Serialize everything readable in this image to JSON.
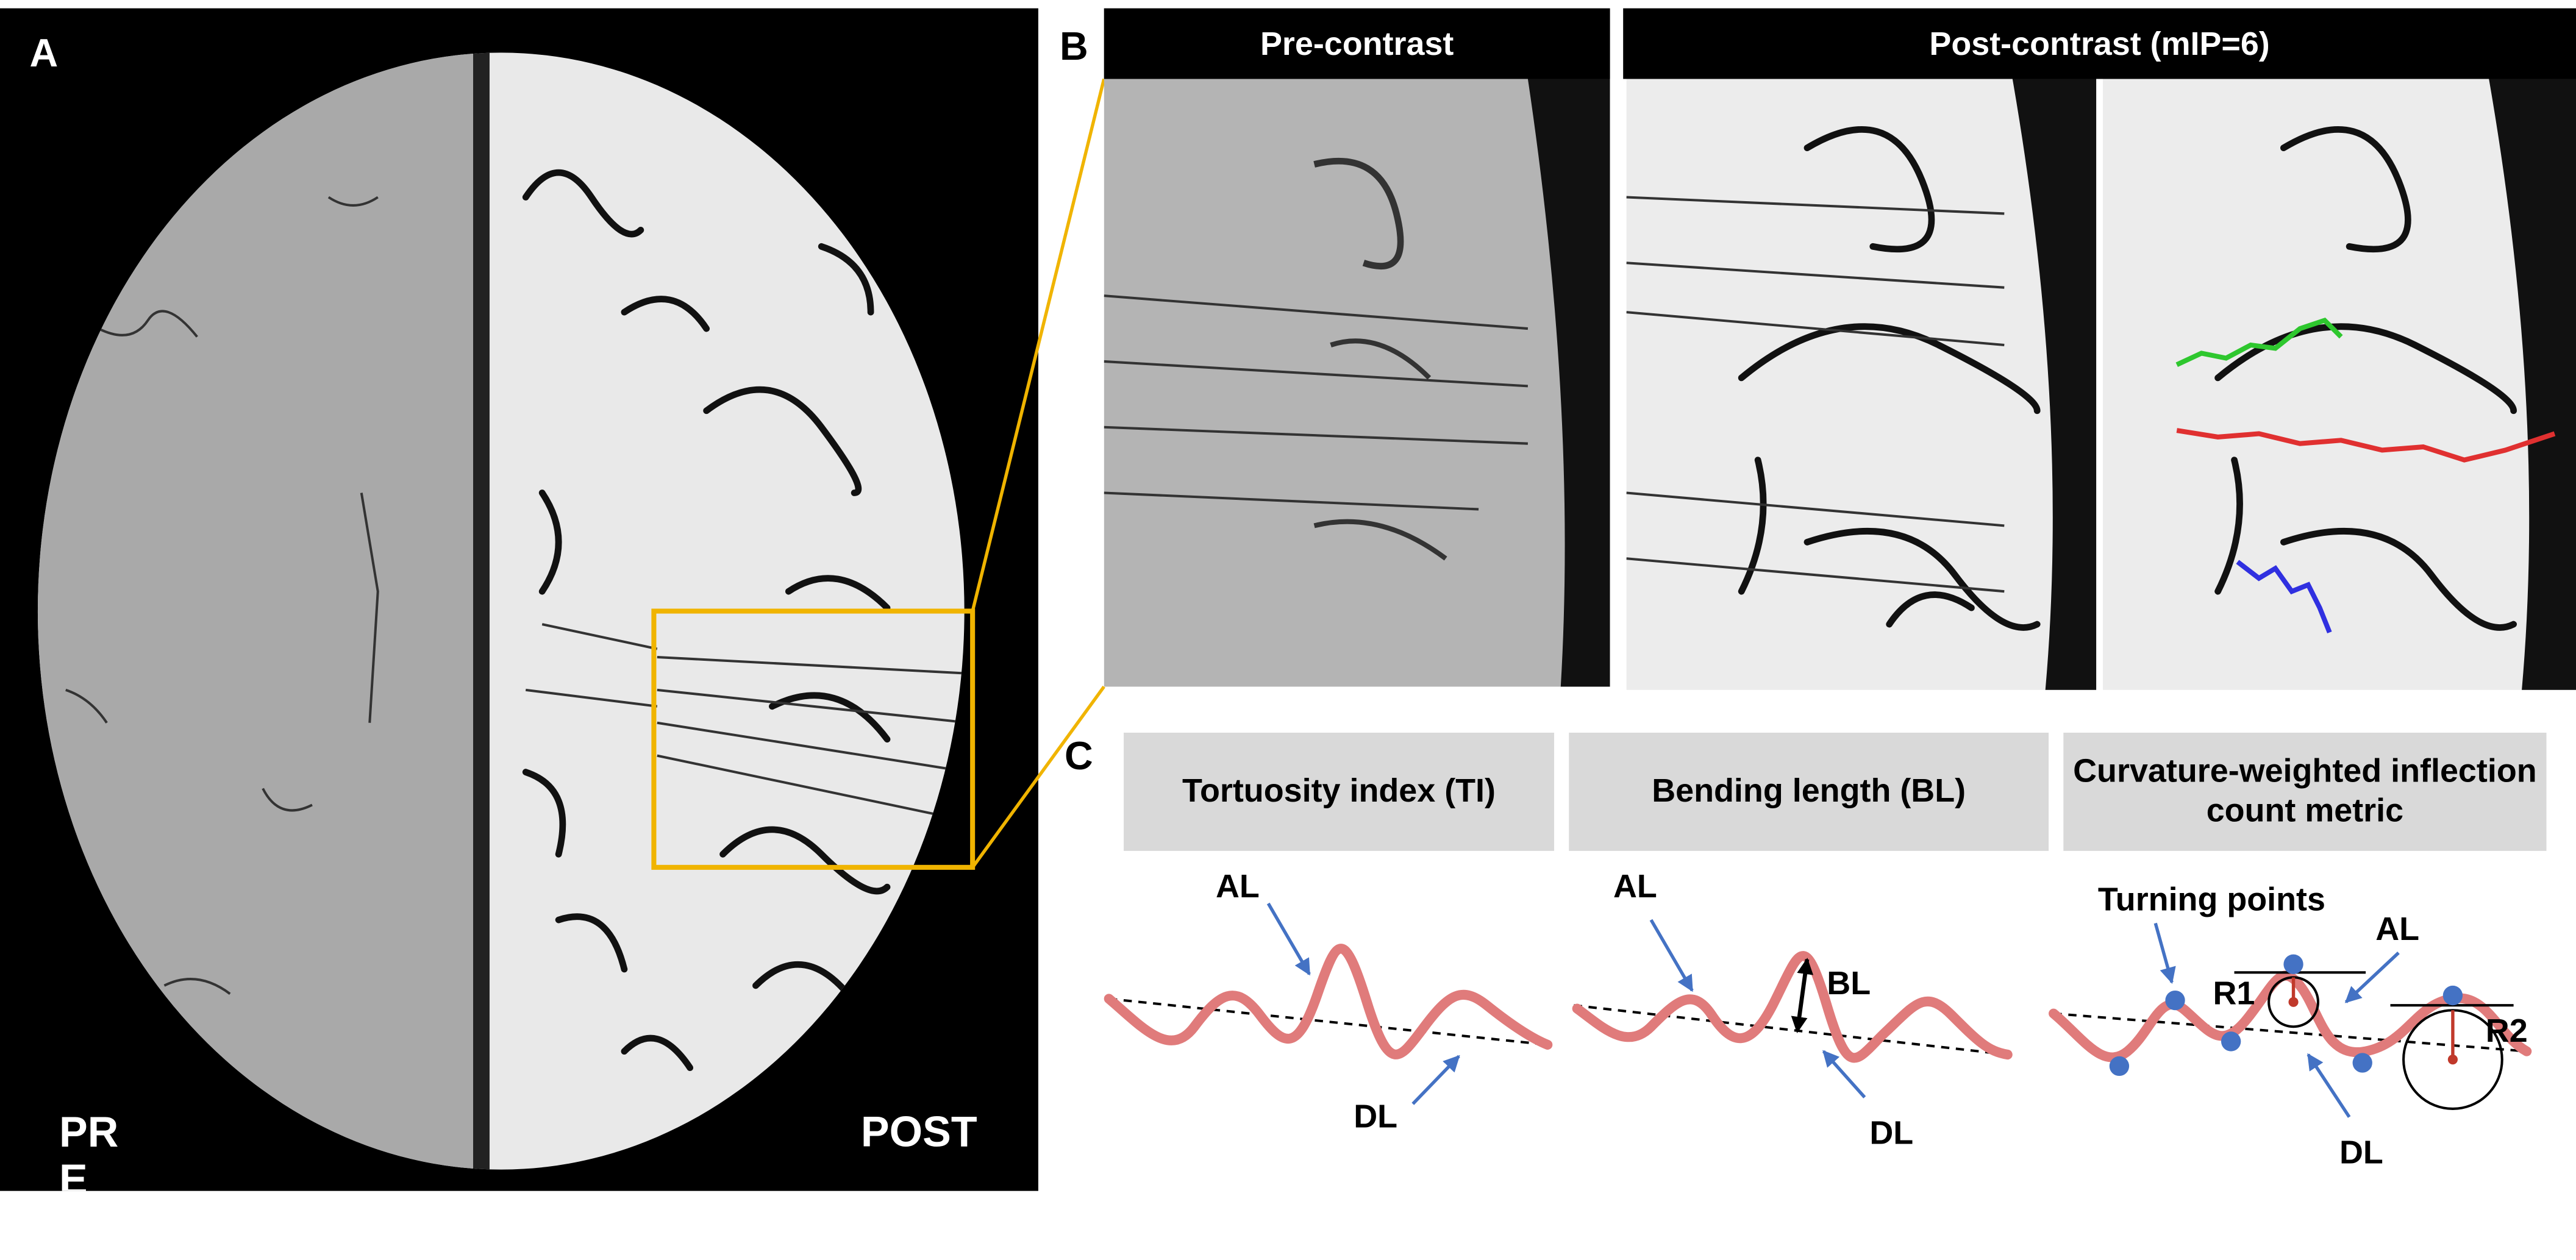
{
  "panel_a": {
    "label": "A",
    "left_label": "PRE",
    "right_label": "POST"
  },
  "panel_b": {
    "label": "B",
    "headers": [
      "Pre-contrast",
      "Post-contrast (mIP=6)"
    ]
  },
  "panel_c": {
    "label": "C",
    "boxes": [
      {
        "title": "Tortuosity index (TI)",
        "annotations": [
          "AL",
          "DL"
        ]
      },
      {
        "title": "Bending length (BL)",
        "annotations": [
          "AL",
          "BL",
          "DL"
        ]
      },
      {
        "title": "Curvature-weighted inflection count metric",
        "annotations": [
          "Turning points",
          "AL",
          "R1",
          "R2",
          "DL"
        ]
      }
    ]
  }
}
